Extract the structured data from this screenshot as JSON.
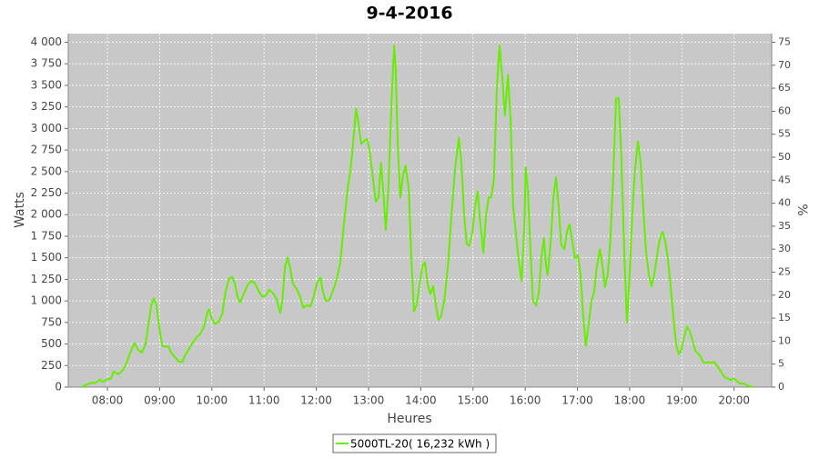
{
  "chart_data": {
    "type": "line",
    "title": "9-4-2016",
    "xlabel": "Heures",
    "ylabel": "Watts",
    "y2label": "%",
    "xlim": [
      7.25,
      20.72
    ],
    "ylim": [
      0,
      4100
    ],
    "y2lim": [
      0,
      76.875
    ],
    "grid": true,
    "legend": "bottom",
    "xticks": [
      {
        "value": 8,
        "label": "08:00"
      },
      {
        "value": 9,
        "label": "09:00"
      },
      {
        "value": 10,
        "label": "10:00"
      },
      {
        "value": 11,
        "label": "11:00"
      },
      {
        "value": 12,
        "label": "12:00"
      },
      {
        "value": 13,
        "label": "13:00"
      },
      {
        "value": 14,
        "label": "14:00"
      },
      {
        "value": 15,
        "label": "15:00"
      },
      {
        "value": 16,
        "label": "16:00"
      },
      {
        "value": 17,
        "label": "17:00"
      },
      {
        "value": 18,
        "label": "18:00"
      },
      {
        "value": 19,
        "label": "19:00"
      },
      {
        "value": 20,
        "label": "20:00"
      }
    ],
    "yticks": [
      0,
      250,
      500,
      750,
      {
        "value": 1000,
        "label": "1 000"
      },
      {
        "value": 1250,
        "label": "1 250"
      },
      {
        "value": 1500,
        "label": "1 500"
      },
      {
        "value": 1750,
        "label": "1 750"
      },
      {
        "value": 2000,
        "label": "2 000"
      },
      {
        "value": 2250,
        "label": "2 250"
      },
      {
        "value": 2500,
        "label": "2 500"
      },
      {
        "value": 2750,
        "label": "2 750"
      },
      {
        "value": 3000,
        "label": "3 000"
      },
      {
        "value": 3250,
        "label": "3 250"
      },
      {
        "value": 3500,
        "label": "3 500"
      },
      {
        "value": 3750,
        "label": "3 750"
      },
      {
        "value": 4000,
        "label": "4 000"
      }
    ],
    "y2ticks": [
      0,
      5,
      10,
      15,
      20,
      25,
      30,
      35,
      40,
      45,
      50,
      55,
      60,
      65,
      70,
      75
    ],
    "x": [
      7.51,
      7.6,
      7.69,
      7.77,
      7.86,
      7.91,
      8.0,
      8.07,
      8.12,
      8.21,
      8.3,
      8.38,
      8.47,
      8.52,
      8.59,
      8.66,
      8.73,
      8.78,
      8.84,
      8.89,
      8.94,
      8.99,
      9.05,
      9.12,
      9.17,
      9.22,
      9.29,
      9.36,
      9.43,
      9.5,
      9.57,
      9.64,
      9.71,
      9.78,
      9.85,
      9.92,
      9.95,
      10.0,
      10.06,
      10.13,
      10.2,
      10.26,
      10.33,
      10.39,
      10.44,
      10.49,
      10.54,
      10.61,
      10.68,
      10.75,
      10.82,
      10.89,
      10.96,
      11.03,
      11.1,
      11.17,
      11.24,
      11.31,
      11.35,
      11.4,
      11.45,
      11.5,
      11.55,
      11.62,
      11.69,
      11.75,
      11.82,
      11.89,
      11.95,
      12.02,
      12.08,
      12.13,
      12.18,
      12.25,
      12.32,
      12.39,
      12.46,
      12.53,
      12.6,
      12.65,
      12.7,
      12.76,
      12.81,
      12.86,
      12.91,
      12.97,
      13.02,
      13.09,
      13.14,
      13.19,
      13.24,
      13.28,
      13.33,
      13.38,
      13.44,
      13.49,
      13.52,
      13.56,
      13.61,
      13.66,
      13.71,
      13.77,
      13.82,
      13.87,
      13.92,
      13.98,
      14.03,
      14.08,
      14.13,
      14.18,
      14.24,
      14.29,
      14.34,
      14.39,
      14.45,
      14.52,
      14.59,
      14.66,
      14.73,
      14.78,
      14.83,
      14.88,
      14.93,
      14.99,
      15.04,
      15.09,
      15.14,
      15.2,
      15.25,
      15.3,
      15.35,
      15.4,
      15.46,
      15.51,
      15.56,
      15.61,
      15.67,
      15.72,
      15.77,
      15.82,
      15.87,
      15.93,
      15.98,
      16.01,
      16.05,
      16.1,
      16.15,
      16.21,
      16.26,
      16.31,
      16.36,
      16.4,
      16.43,
      16.49,
      16.54,
      16.59,
      16.64,
      16.69,
      16.75,
      16.8,
      16.85,
      16.9,
      16.95,
      17.01,
      17.06,
      17.11,
      17.16,
      17.22,
      17.27,
      17.32,
      17.37,
      17.43,
      17.48,
      17.53,
      17.58,
      17.63,
      17.69,
      17.74,
      17.79,
      17.84,
      17.9,
      17.95,
      18.0,
      18.05,
      18.1,
      18.16,
      18.21,
      18.26,
      18.31,
      18.37,
      18.42,
      18.47,
      18.52,
      18.57,
      18.63,
      18.68,
      18.73,
      18.78,
      18.84,
      18.89,
      18.94,
      18.99,
      19.05,
      19.1,
      19.15,
      19.2,
      19.26,
      19.31,
      19.36,
      19.41,
      19.46,
      19.52,
      19.57,
      19.62,
      19.67,
      19.73,
      19.78,
      19.83,
      19.88,
      19.93,
      19.99,
      20.04,
      20.09,
      20.14,
      20.2,
      20.25,
      20.3,
      20.37
    ],
    "series": [
      {
        "name": "5000TL-20( 16,232 kWh )",
        "color": "#66ee00",
        "values": [
          0,
          30,
          50,
          50,
          90,
          60,
          90,
          100,
          180,
          150,
          200,
          300,
          450,
          510,
          430,
          400,
          500,
          700,
          950,
          1030,
          950,
          700,
          480,
          470,
          470,
          400,
          350,
          300,
          290,
          380,
          450,
          520,
          580,
          620,
          700,
          880,
          900,
          790,
          730,
          760,
          850,
          1100,
          1260,
          1280,
          1200,
          1050,
          980,
          1080,
          1180,
          1230,
          1210,
          1120,
          1050,
          1060,
          1130,
          1090,
          1020,
          860,
          1000,
          1400,
          1500,
          1380,
          1200,
          1140,
          1050,
          920,
          950,
          940,
          1050,
          1220,
          1270,
          1100,
          1000,
          1010,
          1120,
          1250,
          1450,
          1900,
          2300,
          2500,
          2800,
          3230,
          3050,
          2820,
          2850,
          2880,
          2750,
          2400,
          2150,
          2200,
          2600,
          2300,
          1820,
          2300,
          3300,
          3960,
          3700,
          2800,
          2200,
          2450,
          2570,
          2300,
          1500,
          880,
          950,
          1200,
          1400,
          1450,
          1200,
          1080,
          1170,
          950,
          780,
          820,
          1000,
          1400,
          2000,
          2550,
          2890,
          2600,
          2000,
          1660,
          1640,
          1800,
          2100,
          2270,
          1900,
          1560,
          2000,
          2200,
          2200,
          2400,
          3500,
          3960,
          3600,
          3150,
          3620,
          3100,
          2100,
          1800,
          1500,
          1230,
          1800,
          2550,
          2300,
          1600,
          1000,
          950,
          1100,
          1500,
          1730,
          1400,
          1300,
          1700,
          2200,
          2430,
          2100,
          1650,
          1600,
          1800,
          1890,
          1700,
          1500,
          1530,
          1300,
          850,
          480,
          750,
          1000,
          1100,
          1400,
          1600,
          1400,
          1160,
          1300,
          1700,
          2500,
          3350,
          3350,
          2700,
          1500,
          750,
          1300,
          2000,
          2500,
          2850,
          2600,
          2100,
          1600,
          1300,
          1170,
          1300,
          1500,
          1700,
          1800,
          1700,
          1500,
          1200,
          800,
          500,
          380,
          430,
          600,
          700,
          650,
          550,
          420,
          390,
          350,
          290,
          280,
          290,
          280,
          290,
          250,
          200,
          150,
          110,
          100,
          80,
          100,
          80,
          50,
          40,
          40,
          20,
          10,
          0
        ]
      }
    ]
  }
}
